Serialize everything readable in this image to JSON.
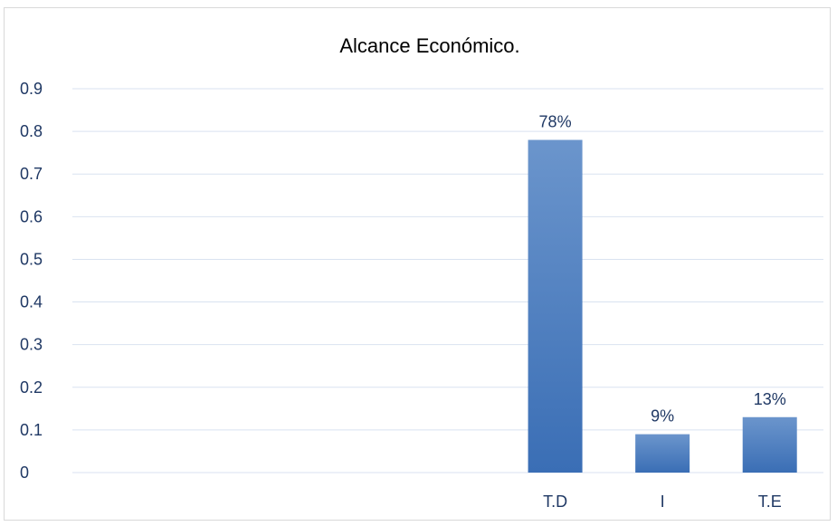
{
  "chart_data": {
    "type": "bar",
    "title": "Alcance Económico.",
    "xlabel": "",
    "ylabel": "",
    "categories": [
      "",
      "",
      "",
      "",
      "T.D",
      "I",
      "T.E"
    ],
    "values": [
      null,
      null,
      null,
      null,
      0.78,
      0.09,
      0.13
    ],
    "data_labels": [
      "",
      "",
      "",
      "",
      "78%",
      "9%",
      "13%"
    ],
    "ylim": [
      0,
      0.9
    ],
    "yticks": [
      "0",
      "0.1",
      "0.2",
      "0.3",
      "0.4",
      "0.5",
      "0.6",
      "0.7",
      "0.8",
      "0.9"
    ],
    "grid": true,
    "legend": "none",
    "colors": {
      "bar_top": "#6b95cc",
      "bar_bottom": "#3a6eb5",
      "gridline": "#d9e2f0",
      "tick_text": "#1f3864",
      "frame": "#d9d9d9"
    }
  }
}
